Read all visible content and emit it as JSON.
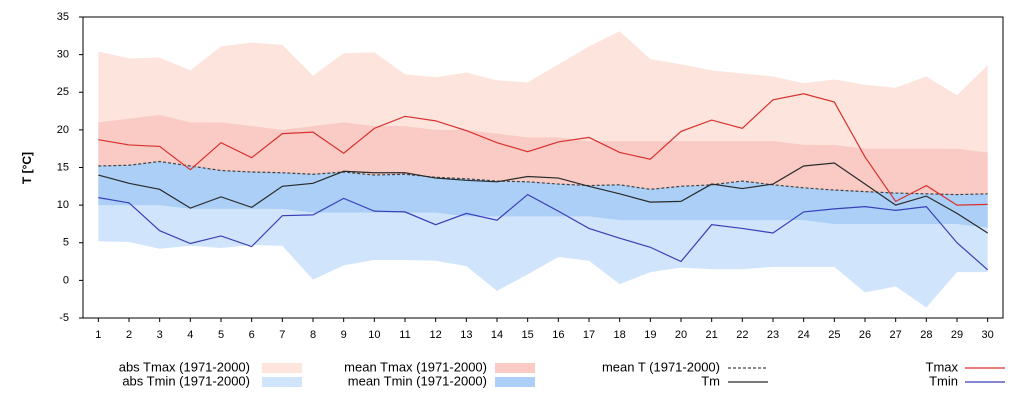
{
  "chart_data": {
    "type": "line",
    "ylabel": "T [°C]",
    "x": [
      1,
      2,
      3,
      4,
      5,
      6,
      7,
      8,
      9,
      10,
      11,
      12,
      13,
      14,
      15,
      16,
      17,
      18,
      19,
      20,
      21,
      22,
      23,
      24,
      25,
      26,
      27,
      28,
      29,
      30
    ],
    "xlim": [
      0.5,
      30.5
    ],
    "xticks": [
      1,
      2,
      3,
      4,
      5,
      6,
      7,
      8,
      9,
      10,
      11,
      12,
      13,
      14,
      15,
      16,
      17,
      18,
      19,
      20,
      21,
      22,
      23,
      24,
      25,
      26,
      27,
      28,
      29,
      30
    ],
    "ylim": [
      -5,
      35
    ],
    "yticks": [
      -5,
      0,
      5,
      10,
      15,
      20,
      25,
      30,
      35
    ],
    "series": [
      {
        "name": "abs Tmax (1971-2000)",
        "color": "#fde4dd",
        "kind": "band",
        "values": [
          30.4,
          29.5,
          29.6,
          27.9,
          31.1,
          31.6,
          31.3,
          27.2,
          30.2,
          30.3,
          27.4,
          27.0,
          27.6,
          26.6,
          26.3,
          28.7,
          31.1,
          33.1,
          29.4,
          28.7,
          27.9,
          27.5,
          27.1,
          26.2,
          26.7,
          26.0,
          25.6,
          27.1,
          24.6,
          28.6
        ]
      },
      {
        "name": "abs Tmin (1971-2000)",
        "color": "#d0e4fb",
        "kind": "band",
        "values": [
          5.2,
          5.1,
          4.2,
          4.6,
          4.3,
          4.7,
          4.6,
          0.1,
          2.0,
          2.7,
          2.7,
          2.6,
          1.9,
          -1.4,
          0.8,
          3.1,
          2.6,
          -0.5,
          1.1,
          1.7,
          1.5,
          1.5,
          1.8,
          1.8,
          1.8,
          -1.6,
          -0.8,
          -3.6,
          1.1,
          1.1
        ]
      },
      {
        "name": "mean Tmax (1971-2000)",
        "color": "#f9cbc4",
        "kind": "band",
        "values": [
          21,
          21.5,
          22,
          21,
          21,
          20.5,
          20,
          20.5,
          21,
          20.5,
          20.5,
          20,
          20,
          19.5,
          19,
          19,
          18.5,
          18.5,
          18.5,
          18.5,
          18.5,
          18.5,
          18.5,
          18,
          18,
          17.5,
          17.5,
          17.5,
          17.5,
          17
        ]
      },
      {
        "name": "mean Tmin (1971-2000)",
        "color": "#abcff6",
        "kind": "band",
        "values": [
          10,
          10,
          10,
          9.5,
          9.5,
          9.5,
          9.5,
          9,
          9,
          9,
          9,
          9,
          8.5,
          8.5,
          8.5,
          8.5,
          8.5,
          8,
          8,
          8,
          8,
          8,
          8,
          8,
          7.5,
          7.5,
          7.5,
          7.5,
          7.5,
          7
        ]
      },
      {
        "name": "mean T (1971-2000)",
        "color": "#444444",
        "kind": "line",
        "style": "dashed",
        "values": [
          15.2,
          15.3,
          15.8,
          15.2,
          14.6,
          14.4,
          14.3,
          14.1,
          14.4,
          14.0,
          14.1,
          13.7,
          13.5,
          13.2,
          13.1,
          12.8,
          12.6,
          12.7,
          12.1,
          12.5,
          12.7,
          13.2,
          12.7,
          12.3,
          12.0,
          11.8,
          11.6,
          11.5,
          11.4,
          11.5
        ]
      },
      {
        "name": "Tm",
        "color": "#2b2b2b",
        "kind": "line",
        "values": [
          14,
          12.9,
          12.1,
          9.6,
          11.1,
          9.7,
          12.5,
          12.9,
          14.5,
          14.3,
          14.3,
          13.6,
          13.3,
          13.1,
          13.8,
          13.6,
          12.5,
          11.5,
          10.4,
          10.5,
          12.8,
          12.2,
          12.8,
          15.2,
          15.6,
          12.8,
          10,
          11.2,
          8.9,
          6.3
        ]
      },
      {
        "name": "Tmax",
        "color": "#d9322e",
        "kind": "line",
        "values": [
          18.7,
          18,
          17.8,
          14.7,
          18.3,
          16.3,
          19.5,
          19.7,
          16.9,
          20.2,
          21.8,
          21.2,
          19.9,
          18.3,
          17.1,
          18.4,
          19,
          17,
          16.1,
          19.8,
          21.3,
          20.2,
          24,
          24.8,
          23.7,
          16.4,
          10.5,
          12.6,
          10,
          10.1
        ]
      },
      {
        "name": "Tmin",
        "color": "#3a3fb8",
        "kind": "line",
        "values": [
          11,
          10.3,
          6.6,
          4.9,
          5.9,
          4.5,
          8.6,
          8.7,
          10.9,
          9.2,
          9.1,
          7.4,
          8.9,
          8,
          11.4,
          9.2,
          6.9,
          5.6,
          4.4,
          2.5,
          7.4,
          6.9,
          6.3,
          9.1,
          9.5,
          9.8,
          9.3,
          9.8,
          5,
          1.4
        ]
      }
    ]
  }
}
